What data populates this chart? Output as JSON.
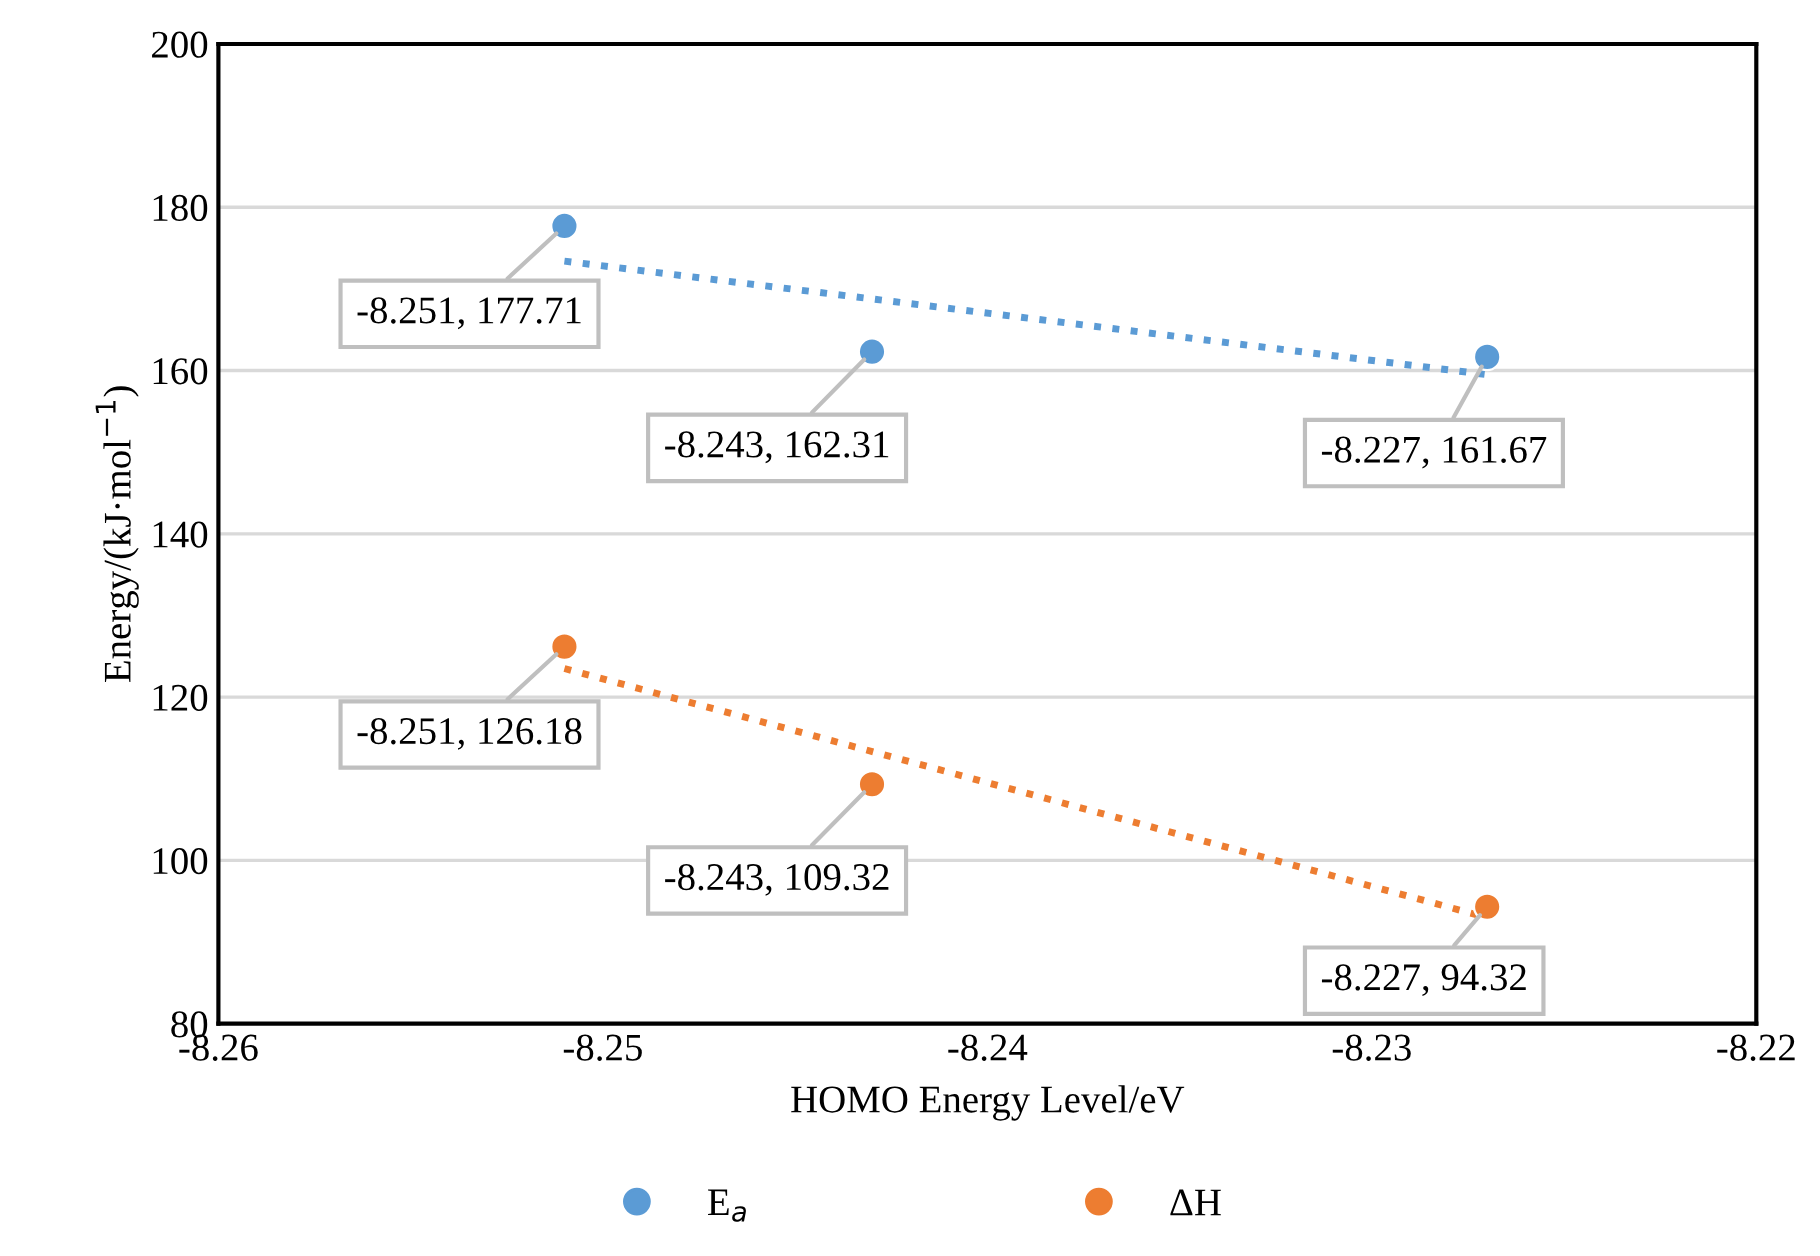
{
  "chart_data": {
    "type": "scatter",
    "xlabel": "HOMO Energy Level/eV",
    "ylabel": "Energy/(kJ·mol$^{−1}$)",
    "xlim": [
      -8.26,
      -8.22
    ],
    "xticks": [
      -8.26,
      -8.25,
      -8.24,
      -8.23,
      -8.22
    ],
    "ylim": [
      80,
      200
    ],
    "yticks": [
      80,
      100,
      120,
      140,
      160,
      180,
      200
    ],
    "grid": "y",
    "legend": "bottom",
    "marker": "circle",
    "series": [
      {
        "name": "E$_{a}$",
        "color": "#5b9bd5",
        "x": [
          -8.251,
          -8.243,
          -8.227
        ],
        "values": [
          177.71,
          162.31,
          161.67
        ]
      },
      {
        "name": "ΔH",
        "color": "#ed7d31",
        "x": [
          -8.251,
          -8.243,
          -8.227
        ],
        "values": [
          126.18,
          109.32,
          94.32
        ]
      },
      {
        "type": "line",
        "color": "#5b9bd5",
        "line_style": "dotted",
        "marker": "none",
        "x": [
          -8.251,
          -8.227
        ],
        "values": [
          173.4,
          159.5
        ]
      },
      {
        "type": "line",
        "color": "#ed7d31",
        "line_style": "dotted",
        "marker": "none",
        "x": [
          -8.251,
          -8.227
        ],
        "values": [
          123.5,
          93.0
        ]
      }
    ],
    "annotations": [
      {
        "text": "-8.251, 177.71",
        "x": -8.251,
        "y": 177.71
      },
      {
        "text": "-8.243, 162.31",
        "x": -8.243,
        "y": 162.31
      },
      {
        "text": "-8.227, 161.67",
        "x": -8.227,
        "y": 161.67
      },
      {
        "text": "-8.251, 126.18",
        "x": -8.251,
        "y": 126.18
      },
      {
        "text": "-8.243, 109.32",
        "x": -8.243,
        "y": 109.32
      },
      {
        "text": "-8.227, 94.32",
        "x": -8.227,
        "y": 94.32
      }
    ]
  }
}
